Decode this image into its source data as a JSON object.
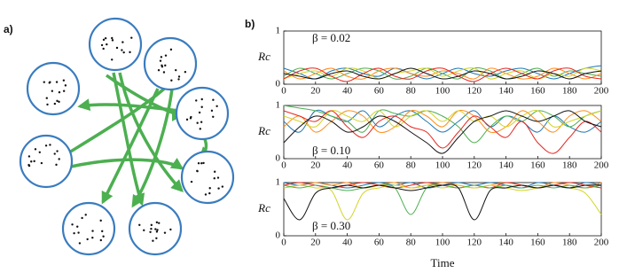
{
  "panel_labels": {
    "a": "a)",
    "b": "b)"
  },
  "chart_data": [
    {
      "type": "line",
      "annotation": "β = 0.02",
      "ylabel": "Rc",
      "x": [
        0,
        10,
        20,
        30,
        40,
        50,
        60,
        70,
        80,
        90,
        100,
        110,
        120,
        130,
        140,
        150,
        160,
        170,
        180,
        190,
        200
      ],
      "xlim": [
        0,
        200
      ],
      "xticks": [
        0,
        20,
        40,
        60,
        80,
        100,
        120,
        140,
        160,
        180,
        200
      ],
      "ylim": [
        0,
        1
      ],
      "yticks": [
        0,
        1
      ],
      "series": [
        {
          "color": "#1f77b4",
          "values": [
            0.3,
            0.2,
            0.1,
            0.25,
            0.3,
            0.2,
            0.15,
            0.3,
            0.2,
            0.1,
            0.2,
            0.3,
            0.2,
            0.15,
            0.25,
            0.3,
            0.2,
            0.1,
            0.2,
            0.3,
            0.35
          ]
        },
        {
          "color": "#4caf50",
          "values": [
            0.15,
            0.3,
            0.2,
            0.1,
            0.2,
            0.3,
            0.25,
            0.1,
            0.15,
            0.3,
            0.2,
            0.1,
            0.3,
            0.25,
            0.1,
            0.2,
            0.3,
            0.15,
            0.25,
            0.2,
            0.15
          ]
        },
        {
          "color": "#ff8c1a",
          "values": [
            0.25,
            0.1,
            0.2,
            0.3,
            0.15,
            0.1,
            0.25,
            0.3,
            0.2,
            0.15,
            0.25,
            0.2,
            0.1,
            0.3,
            0.2,
            0.1,
            0.15,
            0.3,
            0.2,
            0.1,
            0.2
          ]
        },
        {
          "color": "#d4d42a",
          "values": [
            0.1,
            0.2,
            0.25,
            0.15,
            0.3,
            0.25,
            0.1,
            0.2,
            0.25,
            0.3,
            0.15,
            0.25,
            0.3,
            0.1,
            0.2,
            0.25,
            0.1,
            0.2,
            0.15,
            0.3,
            0.25
          ]
        },
        {
          "color": "#e6261f",
          "values": [
            0.1,
            0.25,
            0.3,
            0.15,
            0.05,
            0.2,
            0.3,
            0.15,
            0.1,
            0.25,
            0.3,
            0.15,
            0.05,
            0.2,
            0.3,
            0.2,
            0.1,
            0.25,
            0.3,
            0.15,
            0.1
          ]
        },
        {
          "color": "#111111",
          "values": [
            0.2,
            0.15,
            0.1,
            0.2,
            0.25,
            0.15,
            0.1,
            0.2,
            0.3,
            0.2,
            0.1,
            0.15,
            0.25,
            0.2,
            0.1,
            0.15,
            0.25,
            0.2,
            0.1,
            0.2,
            0.25
          ]
        }
      ]
    },
    {
      "type": "line",
      "annotation": "β = 0.10",
      "ylabel": "Rc",
      "x": [
        0,
        10,
        20,
        30,
        40,
        50,
        60,
        70,
        80,
        90,
        100,
        110,
        120,
        130,
        140,
        150,
        160,
        170,
        180,
        190,
        200
      ],
      "xlim": [
        0,
        200
      ],
      "xticks": [
        0,
        20,
        40,
        60,
        80,
        100,
        120,
        140,
        160,
        180,
        200
      ],
      "ylim": [
        0,
        1
      ],
      "yticks": [
        0,
        1
      ],
      "series": [
        {
          "color": "#1f77b4",
          "values": [
            0.7,
            0.5,
            0.9,
            0.8,
            0.7,
            0.9,
            0.6,
            0.8,
            0.9,
            0.7,
            0.5,
            0.7,
            0.9,
            0.6,
            0.8,
            0.7,
            0.5,
            0.8,
            0.6,
            0.5,
            0.7
          ]
        },
        {
          "color": "#4caf50",
          "values": [
            1.0,
            0.95,
            0.9,
            0.8,
            0.7,
            0.5,
            0.9,
            0.85,
            0.8,
            0.9,
            0.8,
            0.6,
            0.3,
            0.6,
            0.8,
            0.7,
            0.9,
            0.8,
            0.6,
            0.8,
            0.9
          ]
        },
        {
          "color": "#ff8c1a",
          "values": [
            0.6,
            0.8,
            0.5,
            0.7,
            0.9,
            0.8,
            0.5,
            0.6,
            0.9,
            0.8,
            0.6,
            0.9,
            0.8,
            0.5,
            0.6,
            0.9,
            0.7,
            0.5,
            0.8,
            0.9,
            0.7
          ]
        },
        {
          "color": "#d4d42a",
          "values": [
            0.8,
            0.7,
            0.6,
            0.9,
            0.8,
            0.7,
            0.9,
            0.6,
            0.8,
            0.9,
            0.7,
            0.9,
            0.7,
            0.8,
            0.6,
            0.8,
            0.9,
            0.6,
            0.7,
            0.8,
            0.9
          ]
        },
        {
          "color": "#e6261f",
          "values": [
            0.9,
            0.8,
            0.7,
            0.9,
            0.6,
            0.4,
            0.7,
            0.8,
            0.6,
            0.5,
            0.2,
            0.5,
            0.8,
            0.6,
            0.4,
            0.7,
            0.3,
            0.1,
            0.4,
            0.7,
            0.5
          ]
        },
        {
          "color": "#111111",
          "values": [
            0.3,
            0.6,
            0.8,
            0.7,
            0.5,
            0.6,
            0.8,
            0.7,
            0.5,
            0.3,
            0.1,
            0.4,
            0.7,
            0.8,
            0.9,
            0.8,
            0.7,
            0.8,
            0.9,
            0.7,
            0.6
          ]
        }
      ]
    },
    {
      "type": "line",
      "annotation": "β = 0.30",
      "ylabel": "Rc",
      "xlabel": "Time",
      "x": [
        0,
        10,
        20,
        30,
        40,
        50,
        60,
        70,
        80,
        90,
        100,
        110,
        120,
        130,
        140,
        150,
        160,
        170,
        180,
        190,
        200
      ],
      "xlim": [
        0,
        200
      ],
      "xticks": [
        0,
        20,
        40,
        60,
        80,
        100,
        120,
        140,
        160,
        180,
        200
      ],
      "ylim": [
        0,
        1
      ],
      "yticks": [
        0,
        1
      ],
      "series": [
        {
          "color": "#1f77b4",
          "values": [
            1.0,
            0.95,
            1.0,
            0.95,
            0.9,
            0.95,
            1.0,
            0.95,
            1.0,
            0.9,
            0.95,
            1.0,
            0.95,
            1.0,
            0.95,
            0.9,
            1.0,
            0.95,
            0.9,
            1.0,
            0.95
          ]
        },
        {
          "color": "#ff8c1a",
          "values": [
            0.9,
            0.95,
            1.0,
            0.95,
            1.0,
            0.9,
            0.95,
            1.0,
            0.9,
            0.95,
            1.0,
            0.95,
            0.9,
            0.95,
            1.0,
            0.95,
            0.9,
            1.0,
            0.95,
            0.9,
            1.0
          ]
        },
        {
          "color": "#e6261f",
          "values": [
            0.95,
            1.0,
            0.95,
            0.9,
            0.95,
            1.0,
            0.95,
            0.9,
            0.95,
            1.0,
            0.95,
            0.9,
            0.95,
            0.9,
            1.0,
            0.95,
            0.9,
            0.95,
            1.0,
            0.95,
            0.9
          ]
        },
        {
          "color": "#d4d42a",
          "values": [
            0.9,
            0.95,
            0.9,
            0.85,
            0.3,
            0.8,
            0.9,
            0.95,
            0.9,
            0.95,
            0.9,
            0.95,
            0.9,
            0.95,
            0.9,
            0.85,
            0.9,
            0.95,
            0.9,
            0.8,
            0.4
          ]
        },
        {
          "color": "#4caf50",
          "values": [
            0.95,
            0.9,
            0.95,
            0.9,
            0.85,
            0.9,
            0.95,
            0.9,
            0.4,
            0.9,
            0.95,
            0.9,
            0.95,
            0.9,
            0.95,
            0.9,
            0.95,
            0.9,
            0.95,
            0.9,
            0.95
          ]
        },
        {
          "color": "#111111",
          "values": [
            0.7,
            0.3,
            0.8,
            0.9,
            0.95,
            0.9,
            0.95,
            0.9,
            0.85,
            0.9,
            0.95,
            0.9,
            0.3,
            0.85,
            0.9,
            0.95,
            0.9,
            0.95,
            0.9,
            0.95,
            0.95
          ]
        }
      ]
    }
  ]
}
